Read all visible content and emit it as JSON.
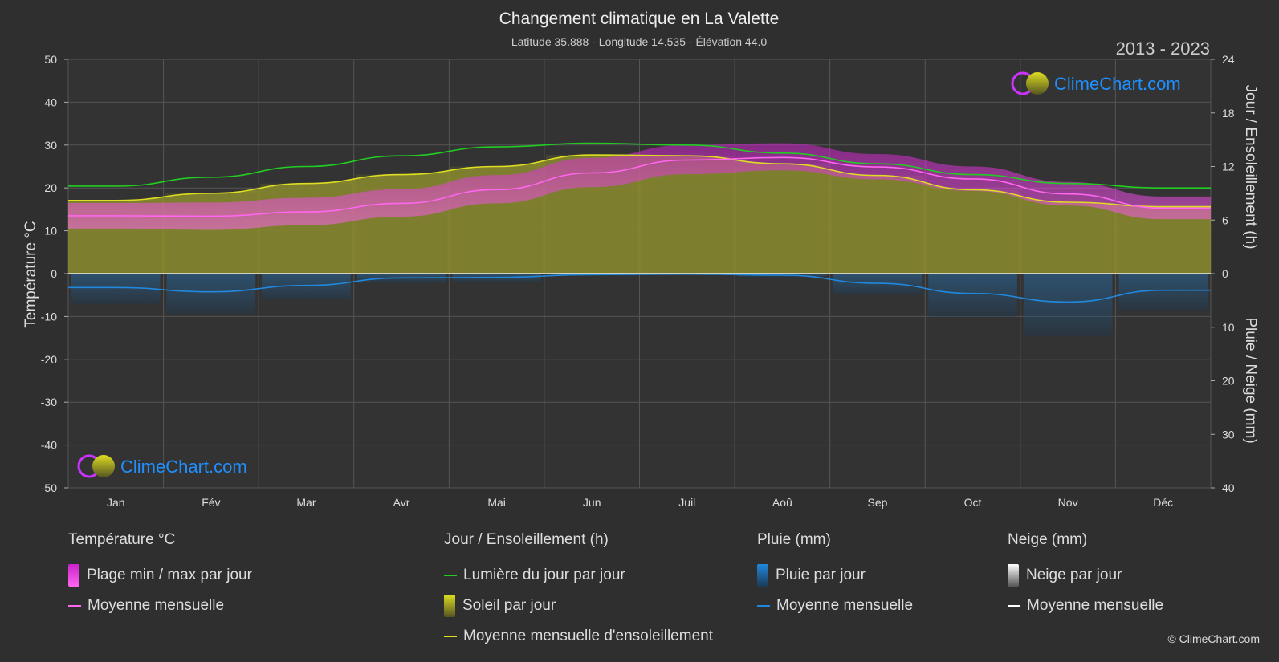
{
  "title": "Changement climatique en La Valette",
  "subtitle": "Latitude 35.888 - Longitude 14.535 - Élévation 44.0",
  "period": "2013 - 2023",
  "brand": "ClimeChart.com",
  "copyright": "© ClimeChart.com",
  "colors": {
    "background": "#2f2f2f",
    "daylight": "#22cc22",
    "sunshine_mean": "#dddd22",
    "sunshine_fill": "#8a8a2e",
    "temp_mean": "#ff66ee",
    "temp_range": "#cc22cc",
    "rain": "#2288dd",
    "snow": "#ffffff",
    "brand_text": "#1e90ff"
  },
  "chart_data": {
    "type": "area",
    "title": "Changement climatique en La Valette",
    "months": [
      "Jan",
      "Fév",
      "Mar",
      "Avr",
      "Mai",
      "Jun",
      "Juil",
      "Aoû",
      "Sep",
      "Oct",
      "Nov",
      "Déc"
    ],
    "axes": {
      "left": {
        "label": "Température °C",
        "min": -50,
        "max": 50,
        "ticks": [
          50,
          40,
          30,
          20,
          10,
          0,
          -10,
          -20,
          -30,
          -40,
          -50
        ]
      },
      "right_top": {
        "label": "Jour / Ensoleillement (h)",
        "min": 0,
        "max": 24,
        "ticks": [
          24,
          18,
          12,
          6,
          0
        ]
      },
      "right_bottom": {
        "label": "Pluie / Neige (mm)",
        "min": 0,
        "max": 40,
        "ticks": [
          0,
          10,
          20,
          30,
          40
        ]
      }
    },
    "grid": true,
    "series": [
      {
        "name": "Lumière du jour par jour",
        "axis": "hours",
        "values": [
          9.8,
          10.8,
          12.0,
          13.2,
          14.2,
          14.6,
          14.4,
          13.5,
          12.3,
          11.1,
          10.1,
          9.6
        ]
      },
      {
        "name": "Moyenne mensuelle d'ensoleillement",
        "axis": "hours",
        "values": [
          8.2,
          9.0,
          10.1,
          11.1,
          12.0,
          13.3,
          13.2,
          12.3,
          11.0,
          9.4,
          8.0,
          7.5
        ]
      },
      {
        "name": "Moyenne mensuelle",
        "group": "Température °C",
        "axis": "temperature",
        "values": [
          13.5,
          13.4,
          14.4,
          16.4,
          19.6,
          23.5,
          26.5,
          27.1,
          24.9,
          22.1,
          18.6,
          15.3
        ]
      },
      {
        "name": "Plage min / max par jour",
        "group": "Température °C",
        "axis": "temperature",
        "min": [
          10.5,
          10.2,
          11.3,
          13.3,
          16.4,
          20.2,
          23.2,
          24.1,
          22.0,
          19.3,
          15.9,
          12.7
        ],
        "max": [
          16.5,
          16.6,
          17.7,
          19.7,
          23.0,
          27.0,
          30.0,
          30.4,
          27.9,
          25.0,
          21.4,
          18.0
        ]
      },
      {
        "name": "Moyenne mensuelle",
        "group": "Pluie (mm)",
        "axis": "precipitation",
        "values": [
          2.6,
          3.4,
          2.2,
          0.8,
          0.7,
          0.2,
          0.1,
          0.3,
          1.8,
          3.7,
          5.3,
          3.1
        ]
      },
      {
        "name": "Moyenne mensuelle",
        "group": "Neige (mm)",
        "axis": "precipitation",
        "values": [
          0,
          0,
          0,
          0,
          0,
          0,
          0,
          0,
          0,
          0,
          0,
          0
        ]
      }
    ]
  },
  "legend": {
    "temperature": {
      "heading": "Température °C",
      "range_label": "Plage min / max par jour",
      "mean_label": "Moyenne mensuelle"
    },
    "sun": {
      "heading": "Jour / Ensoleillement (h)",
      "daylight_label": "Lumière du jour par jour",
      "sunshine_label": "Soleil par jour",
      "sunshine_mean_label": "Moyenne mensuelle d'ensoleillement"
    },
    "rain": {
      "heading": "Pluie (mm)",
      "daily_label": "Pluie par jour",
      "mean_label": "Moyenne mensuelle"
    },
    "snow": {
      "heading": "Neige (mm)",
      "daily_label": "Neige par jour",
      "mean_label": "Moyenne mensuelle"
    }
  }
}
